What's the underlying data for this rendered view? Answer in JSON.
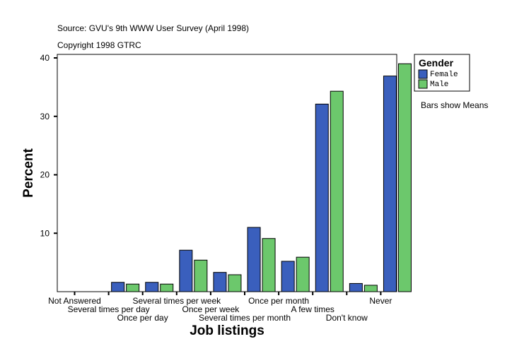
{
  "chart_data": {
    "type": "bar",
    "source": "Source: GVU's 9th WWW User Survey (April 1998)",
    "copyright": "Copyright 1998 GTRC",
    "xlabel": "Job listings",
    "ylabel": "Percent",
    "ylim": [
      0,
      40
    ],
    "yticks": [
      10,
      20,
      30,
      40
    ],
    "categories": [
      "Not Answered",
      "Several times per day",
      "Once per day",
      "Several times per week",
      "Once per week",
      "Several times per month",
      "Once per month",
      "A few times",
      "Don't know",
      "Never"
    ],
    "series": [
      {
        "name": "Female",
        "color": "#3a5fbd",
        "values": [
          0,
          1.6,
          1.6,
          7.1,
          3.3,
          11.0,
          5.2,
          32.1,
          1.4,
          36.9
        ]
      },
      {
        "name": "Male",
        "color": "#6cc86c",
        "values": [
          0,
          1.3,
          1.3,
          5.4,
          2.9,
          9.1,
          5.9,
          34.3,
          1.1,
          39.0
        ]
      }
    ],
    "legend": {
      "title": "Gender",
      "placement": "right"
    },
    "note": "Bars show Means",
    "grid": false
  }
}
